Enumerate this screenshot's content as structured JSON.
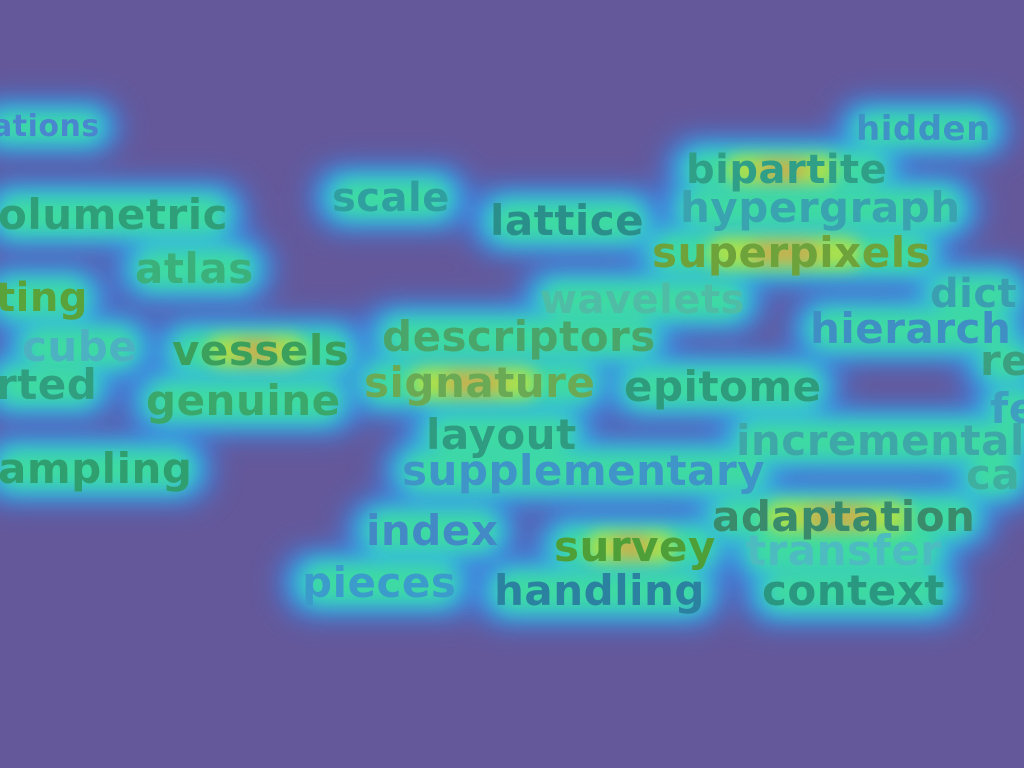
{
  "palette": {
    "background": "#64589a",
    "glow_outer": "#3f7fe0",
    "glow_mid": "#36c5d6",
    "glow_inner": "#3fe09a",
    "hot_yellow": "#c8e236",
    "hot_orange": "#e9a13a"
  },
  "words": [
    {
      "text": "ations",
      "color": "#4a86cf"
    },
    {
      "text": "hidden",
      "color": "#3f92c6"
    },
    {
      "text": "bipartite",
      "color": "#2f9f88"
    },
    {
      "text": "scale",
      "color": "#2f9fa0"
    },
    {
      "text": "lattice",
      "color": "#2a8f8a"
    },
    {
      "text": "hypergraph",
      "color": "#3aa3b0"
    },
    {
      "text": "olumetric",
      "color": "#2f9f7a"
    },
    {
      "text": "superpixels",
      "color": "#6ea23a"
    },
    {
      "text": "atlas",
      "color": "#3bb07a"
    },
    {
      "text": "ting",
      "color": "#5aa23a"
    },
    {
      "text": "wavelets",
      "color": "#4fbca6"
    },
    {
      "text": "dict",
      "color": "#3a9fb0"
    },
    {
      "text": "hierarch",
      "color": "#3f8fc4"
    },
    {
      "text": "cube",
      "color": "#4cb2c2"
    },
    {
      "text": "vessels",
      "color": "#3aa05c"
    },
    {
      "text": "descriptors",
      "color": "#4aa56a"
    },
    {
      "text": "re",
      "color": "#3aa080"
    },
    {
      "text": "rted",
      "color": "#2f9f80"
    },
    {
      "text": "signature",
      "color": "#6aaa54"
    },
    {
      "text": "epitome",
      "color": "#2e9c7c"
    },
    {
      "text": "genuine",
      "color": "#3aa86a"
    },
    {
      "text": "fe",
      "color": "#3f9fc0"
    },
    {
      "text": "layout",
      "color": "#2f9c82"
    },
    {
      "text": "incremental",
      "color": "#3ea8a8"
    },
    {
      "text": "ampling",
      "color": "#2f9f70"
    },
    {
      "text": "supplementary",
      "color": "#3f95c8"
    },
    {
      "text": "ca",
      "color": "#3fb0a0"
    },
    {
      "text": "adaptation",
      "color": "#3a8a6c"
    },
    {
      "text": "index",
      "color": "#4289c6"
    },
    {
      "text": "survey",
      "color": "#4f9f38"
    },
    {
      "text": "transfer",
      "color": "#4cbcc0"
    },
    {
      "text": "pieces",
      "color": "#3b9ccc"
    },
    {
      "text": "handling",
      "color": "#2a82a0"
    },
    {
      "text": "context",
      "color": "#2a9880"
    }
  ]
}
